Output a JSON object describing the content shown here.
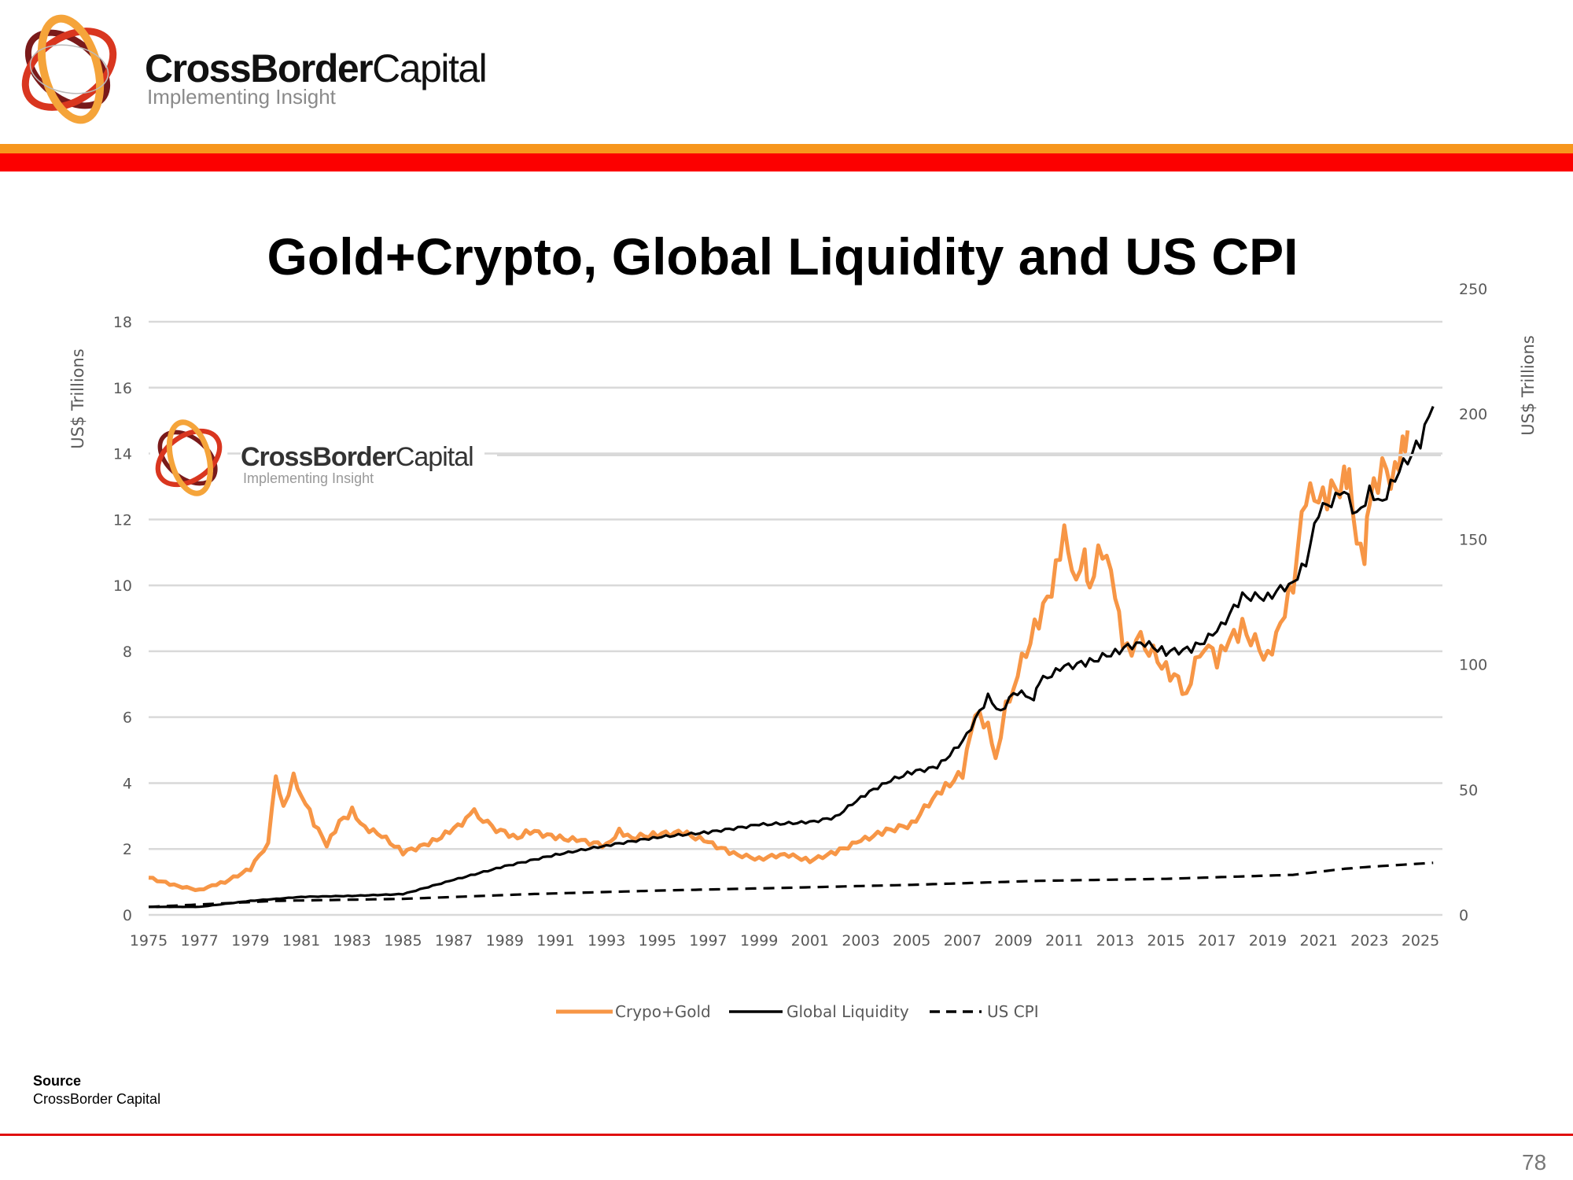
{
  "header": {
    "brand_bold": "CrossBorder",
    "brand_light": "Capital",
    "tagline": "Implementing Insight",
    "stripe_colors": [
      "#f7961d",
      "#fc0000"
    ]
  },
  "slide": {
    "title": "Gold+Crypto, Global Liquidity and US CPI",
    "source_label": "Source",
    "source_text": "CrossBorder Capital",
    "page_number": "78"
  },
  "watermark": {
    "brand_bold": "CrossBorder",
    "brand_light": "Capital",
    "tagline": "Implementing Insight"
  },
  "chart_data": {
    "type": "line",
    "title": "Gold+Crypto, Global Liquidity and US CPI",
    "xlim": [
      1975,
      2026
    ],
    "x_ticks": [
      "1975",
      "1977",
      "1979",
      "1981",
      "1983",
      "1985",
      "1987",
      "1989",
      "1991",
      "1993",
      "1995",
      "1997",
      "1999",
      "2001",
      "2003",
      "2005",
      "2007",
      "2009",
      "2011",
      "2013",
      "2015",
      "2017",
      "2019",
      "2021",
      "2023",
      "2025"
    ],
    "y_left": {
      "label": "US$ Trillions",
      "range": [
        0,
        18
      ],
      "ticks": [
        0,
        2,
        4,
        6,
        8,
        10,
        12,
        14,
        16,
        18
      ]
    },
    "y_right": {
      "label": "US$ Trillions",
      "range": [
        0,
        250
      ],
      "ticks": [
        0,
        50,
        100,
        150,
        200,
        250
      ]
    },
    "grid": true,
    "legend_position": "bottom",
    "series": [
      {
        "name": "Crypo+Gold",
        "axis": "left",
        "color": "#f79646",
        "style": "solid",
        "points": [
          [
            1975,
            1.13
          ],
          [
            1976,
            0.9
          ],
          [
            1977,
            0.75
          ],
          [
            1977.5,
            0.9
          ],
          [
            1978,
            1.0
          ],
          [
            1979,
            1.4
          ],
          [
            1979.7,
            2.2
          ],
          [
            1980,
            4.1
          ],
          [
            1980.3,
            3.2
          ],
          [
            1980.7,
            4.25
          ],
          [
            1981,
            3.7
          ],
          [
            1981.5,
            2.8
          ],
          [
            1982,
            2.1
          ],
          [
            1982.5,
            2.8
          ],
          [
            1983,
            3.15
          ],
          [
            1983.5,
            2.65
          ],
          [
            1984,
            2.5
          ],
          [
            1985,
            1.9
          ],
          [
            1986,
            2.15
          ],
          [
            1987,
            2.6
          ],
          [
            1987.8,
            3.1
          ],
          [
            1988.5,
            2.65
          ],
          [
            1989.5,
            2.35
          ],
          [
            1990,
            2.55
          ],
          [
            1991,
            2.35
          ],
          [
            1992,
            2.25
          ],
          [
            1993,
            2.1
          ],
          [
            1993.5,
            2.55
          ],
          [
            1994,
            2.35
          ],
          [
            1995,
            2.45
          ],
          [
            1996,
            2.5
          ],
          [
            1997,
            2.2
          ],
          [
            1998,
            1.85
          ],
          [
            1999,
            1.7
          ],
          [
            2000,
            1.85
          ],
          [
            2001,
            1.65
          ],
          [
            2002,
            1.9
          ],
          [
            2003,
            2.25
          ],
          [
            2004,
            2.55
          ],
          [
            2005,
            2.75
          ],
          [
            2006,
            3.7
          ],
          [
            2006.5,
            4.0
          ],
          [
            2007,
            4.3
          ],
          [
            2007.5,
            6.1
          ],
          [
            2008,
            5.7
          ],
          [
            2008.3,
            4.6
          ],
          [
            2008.7,
            6.4
          ],
          [
            2009,
            7.0
          ],
          [
            2010,
            9.0
          ],
          [
            2010.5,
            9.8
          ],
          [
            2011,
            11.6
          ],
          [
            2011.3,
            10.1
          ],
          [
            2011.8,
            10.9
          ],
          [
            2012,
            10.1
          ],
          [
            2012.5,
            11.2
          ],
          [
            2013,
            9.8
          ],
          [
            2013.3,
            8.0
          ],
          [
            2014,
            8.3
          ],
          [
            2015,
            7.5
          ],
          [
            2015.8,
            6.8
          ],
          [
            2016.5,
            8.3
          ],
          [
            2017,
            7.7
          ],
          [
            2017.5,
            8.3
          ],
          [
            2018,
            8.7
          ],
          [
            2019,
            7.8
          ],
          [
            2019.5,
            8.9
          ],
          [
            2020,
            10.1
          ],
          [
            2020.5,
            12.8
          ],
          [
            2021,
            12.5
          ],
          [
            2021.5,
            12.8
          ],
          [
            2022,
            13.2
          ],
          [
            2022.2,
            13.5
          ],
          [
            2022.5,
            11.6
          ],
          [
            2022.8,
            11.0
          ],
          [
            2023,
            12.5
          ],
          [
            2023.5,
            13.5
          ],
          [
            2024,
            13.3
          ],
          [
            2024.3,
            14.4
          ],
          [
            2024.5,
            14.7
          ]
        ]
      },
      {
        "name": "Global Liquidity",
        "axis": "right",
        "color": "#000000",
        "style": "solid",
        "points": [
          [
            1975,
            3.2
          ],
          [
            1977,
            3.2
          ],
          [
            1979,
            5.6
          ],
          [
            1981,
            7.2
          ],
          [
            1983,
            7.6
          ],
          [
            1985,
            8.3
          ],
          [
            1987,
            14
          ],
          [
            1989,
            19.4
          ],
          [
            1991,
            24
          ],
          [
            1993,
            27.7
          ],
          [
            1995,
            31
          ],
          [
            1997,
            33
          ],
          [
            1999,
            36
          ],
          [
            2001,
            37
          ],
          [
            2002,
            39
          ],
          [
            2003,
            47
          ],
          [
            2004,
            53
          ],
          [
            2005,
            57
          ],
          [
            2006,
            59
          ],
          [
            2007,
            69
          ],
          [
            2008,
            87
          ],
          [
            2008.5,
            81
          ],
          [
            2009,
            89
          ],
          [
            2009.8,
            87
          ],
          [
            2010,
            93
          ],
          [
            2011,
            99
          ],
          [
            2012,
            101
          ],
          [
            2013,
            105
          ],
          [
            2014,
            109
          ],
          [
            2015,
            105
          ],
          [
            2016,
            106
          ],
          [
            2017,
            113
          ],
          [
            2018,
            127
          ],
          [
            2019,
            127
          ],
          [
            2020,
            133
          ],
          [
            2020.5,
            141
          ],
          [
            2021,
            161
          ],
          [
            2022,
            169
          ],
          [
            2022.5,
            159
          ],
          [
            2023,
            169
          ],
          [
            2023.5,
            165
          ],
          [
            2024,
            175
          ],
          [
            2025,
            189
          ],
          [
            2025.5,
            203
          ]
        ]
      },
      {
        "name": "US CPI",
        "axis": "right",
        "color": "#000000",
        "style": "dashed",
        "points": [
          [
            1975,
            3.2
          ],
          [
            1980,
            5.6
          ],
          [
            1985,
            6.4
          ],
          [
            1990,
            8.3
          ],
          [
            1995,
            9.7
          ],
          [
            2000,
            10.8
          ],
          [
            2005,
            12
          ],
          [
            2010,
            13.6
          ],
          [
            2015,
            14.4
          ],
          [
            2020,
            16
          ],
          [
            2022,
            18.4
          ],
          [
            2023,
            19.2
          ],
          [
            2025.5,
            20.8
          ]
        ]
      }
    ]
  }
}
